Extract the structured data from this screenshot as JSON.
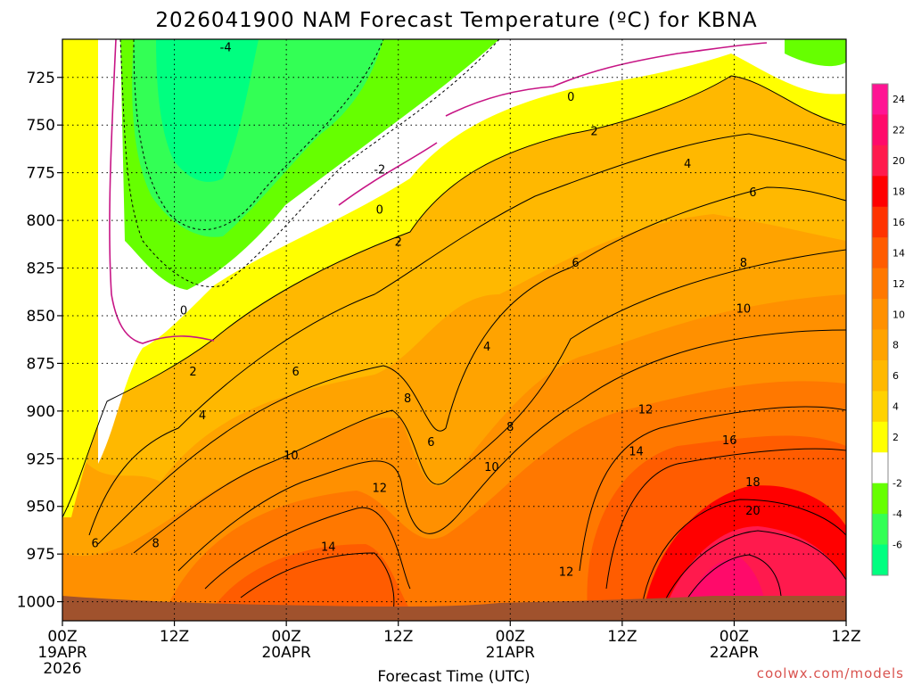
{
  "chart_data": {
    "type": "heatmap",
    "title": "2026041900 NAM Forecast Temperature (ºC) for KBNA",
    "xlabel": "Forecast Time (UTC)",
    "credit": "coolwx.com/models",
    "x_ticks": [
      {
        "hour": 0,
        "label": "00Z",
        "date": "19APR",
        "year": "2026"
      },
      {
        "hour": 12,
        "label": "12Z",
        "date": "",
        "year": ""
      },
      {
        "hour": 24,
        "label": "00Z",
        "date": "20APR",
        "year": ""
      },
      {
        "hour": 36,
        "label": "12Z",
        "date": "",
        "year": ""
      },
      {
        "hour": 48,
        "label": "00Z",
        "date": "21APR",
        "year": ""
      },
      {
        "hour": 60,
        "label": "12Z",
        "date": "",
        "year": ""
      },
      {
        "hour": 72,
        "label": "00Z",
        "date": "22APR",
        "year": ""
      },
      {
        "hour": 84,
        "label": "12Z",
        "date": "",
        "year": ""
      }
    ],
    "xlim": [
      0,
      84
    ],
    "y_ticks": [
      725,
      750,
      775,
      800,
      825,
      850,
      875,
      900,
      925,
      950,
      975,
      1000
    ],
    "ylim": [
      705,
      1010
    ],
    "grid": true,
    "colorbar": {
      "labels": [
        24,
        22,
        20,
        18,
        16,
        14,
        12,
        10,
        8,
        6,
        4,
        2,
        -2,
        -4,
        -6
      ],
      "bins": [
        {
          "from": 24,
          "to": 26,
          "color": "#ff1493"
        },
        {
          "from": 22,
          "to": 24,
          "color": "#ff0a6a"
        },
        {
          "from": 20,
          "to": 22,
          "color": "#ff1a4d"
        },
        {
          "from": 18,
          "to": 20,
          "color": "#ff0000"
        },
        {
          "from": 16,
          "to": 18,
          "color": "#ff3300"
        },
        {
          "from": 14,
          "to": 16,
          "color": "#ff5c00"
        },
        {
          "from": 12,
          "to": 14,
          "color": "#ff7800"
        },
        {
          "from": 10,
          "to": 12,
          "color": "#ff9000"
        },
        {
          "from": 8,
          "to": 10,
          "color": "#ffa300"
        },
        {
          "from": 6,
          "to": 8,
          "color": "#ffb800"
        },
        {
          "from": 4,
          "to": 6,
          "color": "#ffd200"
        },
        {
          "from": 2,
          "to": 4,
          "color": "#ffff00"
        },
        {
          "from": -2,
          "to": 2,
          "color": "#ffffff"
        },
        {
          "from": -4,
          "to": -2,
          "color": "#66ff00"
        },
        {
          "from": -6,
          "to": -4,
          "color": "#33ff55"
        },
        {
          "from": -8,
          "to": -6,
          "color": "#00ff80"
        }
      ]
    },
    "ground_color": "#a0522d",
    "contour_labels": [
      {
        "text": "-4",
        "hour": 17.5,
        "p": 709
      },
      {
        "text": "-2",
        "hour": 34.0,
        "p": 773
      },
      {
        "text": "0",
        "hour": 54.5,
        "p": 735
      },
      {
        "text": "0",
        "hour": 34.0,
        "p": 794
      },
      {
        "text": "0",
        "hour": 13.0,
        "p": 847
      },
      {
        "text": "2",
        "hour": 57.0,
        "p": 753
      },
      {
        "text": "2",
        "hour": 36.0,
        "p": 811
      },
      {
        "text": "2",
        "hour": 14.0,
        "p": 879
      },
      {
        "text": "4",
        "hour": 67.0,
        "p": 770
      },
      {
        "text": "4",
        "hour": 45.5,
        "p": 866
      },
      {
        "text": "4",
        "hour": 15.0,
        "p": 902
      },
      {
        "text": "6",
        "hour": 74.0,
        "p": 785
      },
      {
        "text": "6",
        "hour": 55.0,
        "p": 822
      },
      {
        "text": "6",
        "hour": 25.0,
        "p": 879
      },
      {
        "text": "6",
        "hour": 39.5,
        "p": 916
      },
      {
        "text": "6",
        "hour": 3.5,
        "p": 969
      },
      {
        "text": "8",
        "hour": 73.0,
        "p": 822
      },
      {
        "text": "8",
        "hour": 37.0,
        "p": 893
      },
      {
        "text": "8",
        "hour": 48.0,
        "p": 908
      },
      {
        "text": "8",
        "hour": 10.0,
        "p": 969
      },
      {
        "text": "10",
        "hour": 73.0,
        "p": 846
      },
      {
        "text": "10",
        "hour": 24.5,
        "p": 923
      },
      {
        "text": "10",
        "hour": 46.0,
        "p": 929
      },
      {
        "text": "12",
        "hour": 62.5,
        "p": 899
      },
      {
        "text": "12",
        "hour": 34.0,
        "p": 940
      },
      {
        "text": "12",
        "hour": 54.0,
        "p": 984
      },
      {
        "text": "14",
        "hour": 61.5,
        "p": 921
      },
      {
        "text": "14",
        "hour": 28.5,
        "p": 971
      },
      {
        "text": "16",
        "hour": 71.5,
        "p": 915
      },
      {
        "text": "18",
        "hour": 74.0,
        "p": 937
      },
      {
        "text": "20",
        "hour": 74.0,
        "p": 952
      }
    ]
  }
}
